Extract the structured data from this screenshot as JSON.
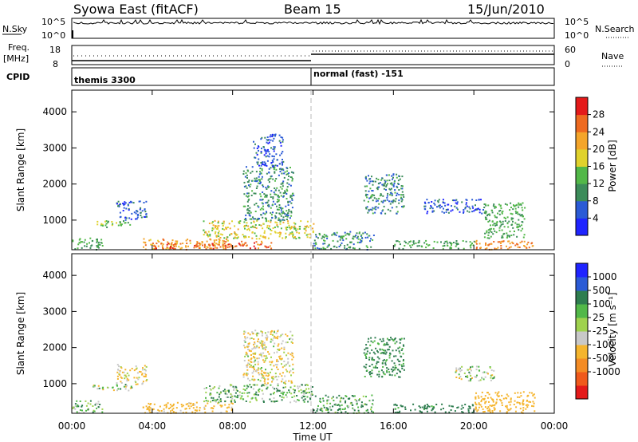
{
  "header": {
    "station": "Syowa East (fitACF)",
    "beam": "Beam 15",
    "date": "15/Jun/2010"
  },
  "strip_labels": {
    "nsky": "N.Sky",
    "nsky_tick_top": "10^5",
    "nsky_tick_bot": "10^0",
    "nsearch": "N.Search",
    "nsearch_tick_top": "10^5",
    "nsearch_tick_bot": "10^0",
    "freq_line1": "Freq.",
    "freq_line2": "[MHz]",
    "freq_tick_top": "18",
    "freq_tick_bot": "8",
    "nave": "Nave",
    "nave_tick_top": "60",
    "nave_tick_bot": "0",
    "cpid": "CPID",
    "cpid_program_1": "themis 3300",
    "cpid_program_2": "normal (fast) -151"
  },
  "colors": {
    "power": [
      "#1f24ff",
      "#2b5bd6",
      "#3c8c5a",
      "#52b848",
      "#e0d22c",
      "#f4a52a",
      "#ee6a20",
      "#e41a1a"
    ],
    "velocity": [
      "#e41a1a",
      "#f05a1c",
      "#f48c25",
      "#f5b52e",
      "#c8c8c8",
      "#9fd24e",
      "#52b848",
      "#2e7d4f",
      "#2b5bd6",
      "#1f24ff"
    ],
    "guide": "#bbbbbb"
  },
  "chart_data": [
    {
      "type": "heatmap",
      "title": "Power",
      "xlabel": "",
      "ylabel": "Slant Range [km]",
      "x_ticks": [
        "00:00",
        "04:00",
        "08:00",
        "12:00",
        "16:00",
        "20:00",
        "00:00"
      ],
      "x_range_hours": [
        0,
        24
      ],
      "y_ticks": [
        1000,
        2000,
        3000,
        4000
      ],
      "ylim": [
        180,
        4600
      ],
      "colorbar": {
        "label": "Power [dB]",
        "ticks": [
          4,
          8,
          12,
          16,
          20,
          24,
          28
        ],
        "range": [
          0,
          32
        ]
      },
      "echo_regions": [
        {
          "t": [
            0,
            1.5
          ],
          "r": [
            200,
            550
          ],
          "value": 12
        },
        {
          "t": [
            1.0,
            3.0
          ],
          "r": [
            820,
            1000
          ],
          "value": 14
        },
        {
          "t": [
            2.2,
            3.7
          ],
          "r": [
            1000,
            1550
          ],
          "value": 6
        },
        {
          "t": [
            3.5,
            8.0
          ],
          "r": [
            200,
            500
          ],
          "value": 22
        },
        {
          "t": [
            4.0,
            5.5
          ],
          "r": [
            200,
            380
          ],
          "value": 28
        },
        {
          "t": [
            6.0,
            10.0
          ],
          "r": [
            230,
            430
          ],
          "value": 26
        },
        {
          "t": [
            6.5,
            12.0
          ],
          "r": [
            500,
            1000
          ],
          "value": 18
        },
        {
          "t": [
            8.5,
            11.0
          ],
          "r": [
            1000,
            2500
          ],
          "value": 10
        },
        {
          "t": [
            9.0,
            10.5
          ],
          "r": [
            2500,
            3400
          ],
          "value": 6
        },
        {
          "t": [
            12.0,
            15.0
          ],
          "r": [
            200,
            700
          ],
          "value": 10
        },
        {
          "t": [
            14.5,
            16.5
          ],
          "r": [
            1200,
            2300
          ],
          "value": 9
        },
        {
          "t": [
            16.0,
            20.0
          ],
          "r": [
            220,
            450
          ],
          "value": 12
        },
        {
          "t": [
            17.5,
            20.5
          ],
          "r": [
            1200,
            1600
          ],
          "value": 6
        },
        {
          "t": [
            20.0,
            23.0
          ],
          "r": [
            200,
            450
          ],
          "value": 24
        },
        {
          "t": [
            20.5,
            22.5
          ],
          "r": [
            500,
            1500
          ],
          "value": 12
        }
      ]
    },
    {
      "type": "heatmap",
      "title": "Velocity",
      "xlabel": "Time UT",
      "ylabel": "Slant Range [km]",
      "x_ticks": [
        "00:00",
        "04:00",
        "08:00",
        "12:00",
        "16:00",
        "20:00",
        "00:00"
      ],
      "x_range_hours": [
        0,
        24
      ],
      "y_ticks": [
        1000,
        2000,
        3000,
        4000
      ],
      "ylim": [
        180,
        4600
      ],
      "colorbar": {
        "label": "Velocity [m s⁻¹]",
        "ticks": [
          "1000",
          "500",
          "100",
          "25",
          "-25",
          "-100",
          "-500",
          "-1000"
        ]
      },
      "echo_regions": [
        {
          "t": [
            0,
            1.5
          ],
          "r": [
            200,
            550
          ],
          "value": 40
        },
        {
          "t": [
            1.0,
            3.0
          ],
          "r": [
            820,
            1000
          ],
          "value": 0
        },
        {
          "t": [
            2.2,
            3.7
          ],
          "r": [
            1000,
            1550
          ],
          "value": -100
        },
        {
          "t": [
            3.5,
            8.0
          ],
          "r": [
            200,
            500
          ],
          "value": -200
        },
        {
          "t": [
            6.5,
            12.0
          ],
          "r": [
            500,
            1000
          ],
          "value": 60
        },
        {
          "t": [
            8.5,
            11.0
          ],
          "r": [
            1000,
            2500
          ],
          "value": -80
        },
        {
          "t": [
            12.0,
            15.0
          ],
          "r": [
            200,
            700
          ],
          "value": 80
        },
        {
          "t": [
            14.5,
            16.5
          ],
          "r": [
            1200,
            2300
          ],
          "value": 150
        },
        {
          "t": [
            16.0,
            20.0
          ],
          "r": [
            220,
            450
          ],
          "value": 200
        },
        {
          "t": [
            19.0,
            21.0
          ],
          "r": [
            1100,
            1500
          ],
          "value": 0
        },
        {
          "t": [
            20.0,
            23.0
          ],
          "r": [
            200,
            800
          ],
          "value": -300
        }
      ]
    }
  ]
}
